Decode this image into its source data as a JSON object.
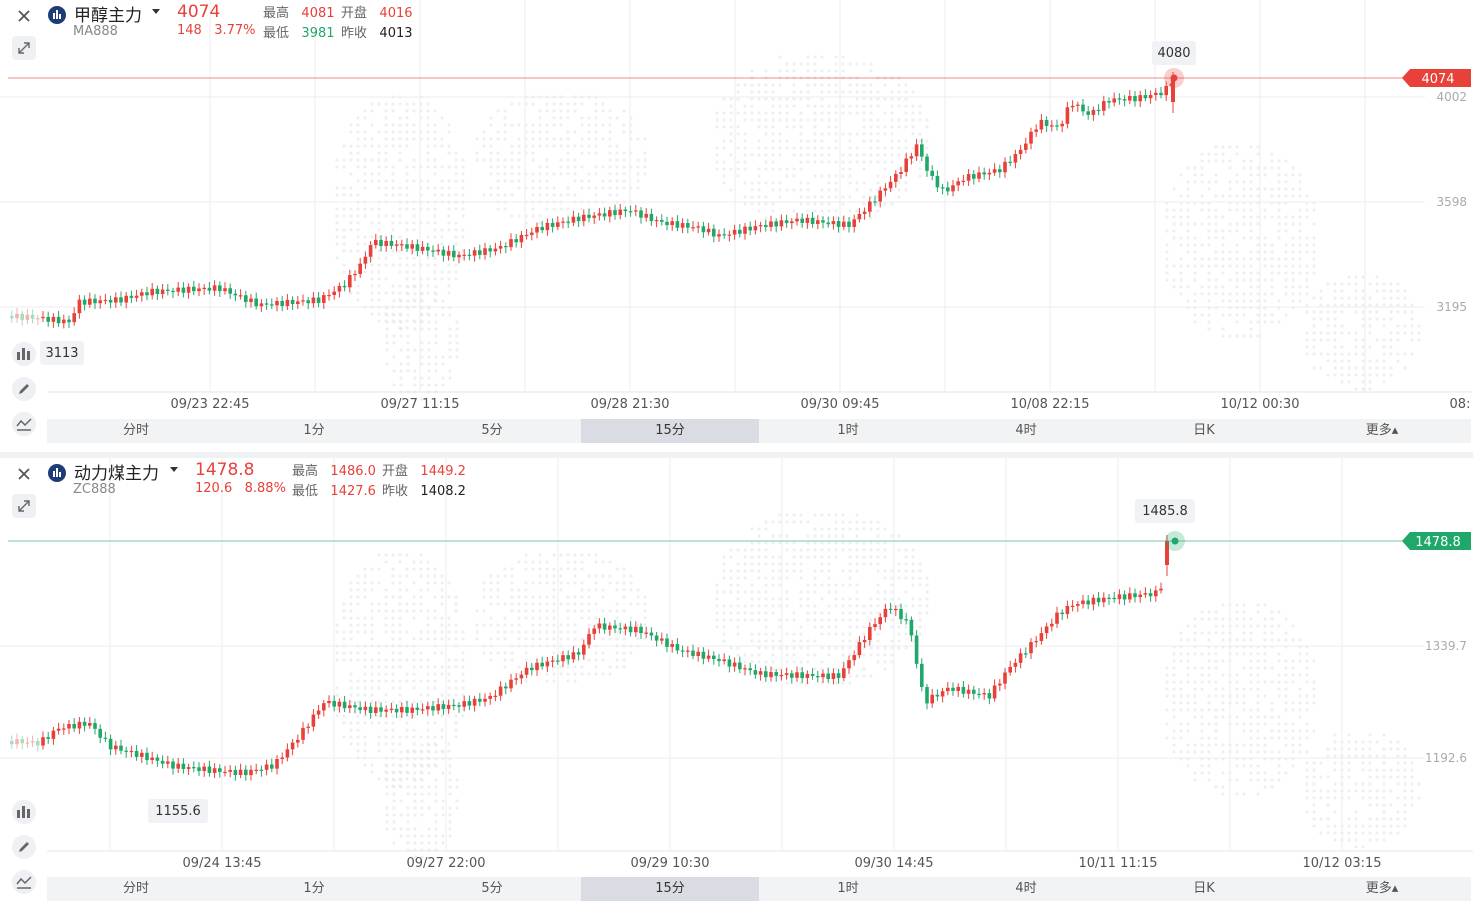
{
  "panels": [
    {
      "name": "甲醇主力",
      "code": "MA888",
      "price": "4074",
      "change": "148",
      "change_pct": "3.77%",
      "stats": {
        "high_label": "最高",
        "high": "4081",
        "open_label": "开盘",
        "open": "4016",
        "low_label": "最低",
        "low": "3981",
        "prev_label": "昨收",
        "prev": "4013"
      },
      "last_price_tag": "4074",
      "high_tag": "4080",
      "low_tag": "3113",
      "y_labels": [
        "4002",
        "3598",
        "3195"
      ],
      "x_labels": [
        "09/23 22:45",
        "09/27 11:15",
        "09/28 21:30",
        "09/30 09:45",
        "10/08 22:15",
        "10/12 00:30",
        "08:"
      ],
      "tabs": [
        "分时",
        "1分",
        "5分",
        "15分",
        "1时",
        "4时",
        "日K",
        "更多▴"
      ],
      "active_tab": "15分",
      "colors": {
        "up": "#e8413a",
        "down": "#20a86b",
        "last_line": "#e8413a"
      }
    },
    {
      "name": "动力煤主力",
      "code": "ZC888",
      "price": "1478.8",
      "change": "120.6",
      "change_pct": "8.88%",
      "stats": {
        "high_label": "最高",
        "high": "1486.0",
        "open_label": "开盘",
        "open": "1449.2",
        "low_label": "最低",
        "low": "1427.6",
        "prev_label": "昨收",
        "prev": "1408.2"
      },
      "last_price_tag": "1478.8",
      "high_tag": "1485.8",
      "low_tag": "1155.6",
      "y_labels": [
        "1339.7",
        "1192.6"
      ],
      "x_labels": [
        "09/24 13:45",
        "09/27 22:00",
        "09/29 10:30",
        "09/30 14:45",
        "10/11 11:15",
        "10/12 03:15"
      ],
      "tabs": [
        "分时",
        "1分",
        "5分",
        "15分",
        "1时",
        "4时",
        "日K",
        "更多▴"
      ],
      "active_tab": "15分",
      "colors": {
        "up": "#e8413a",
        "down": "#20a86b",
        "last_line": "#20a86b"
      }
    }
  ],
  "icons": [
    "close-icon",
    "expand-icon",
    "indicator-icon",
    "draw-icon",
    "trend-icon",
    "chart-logo-icon"
  ]
}
